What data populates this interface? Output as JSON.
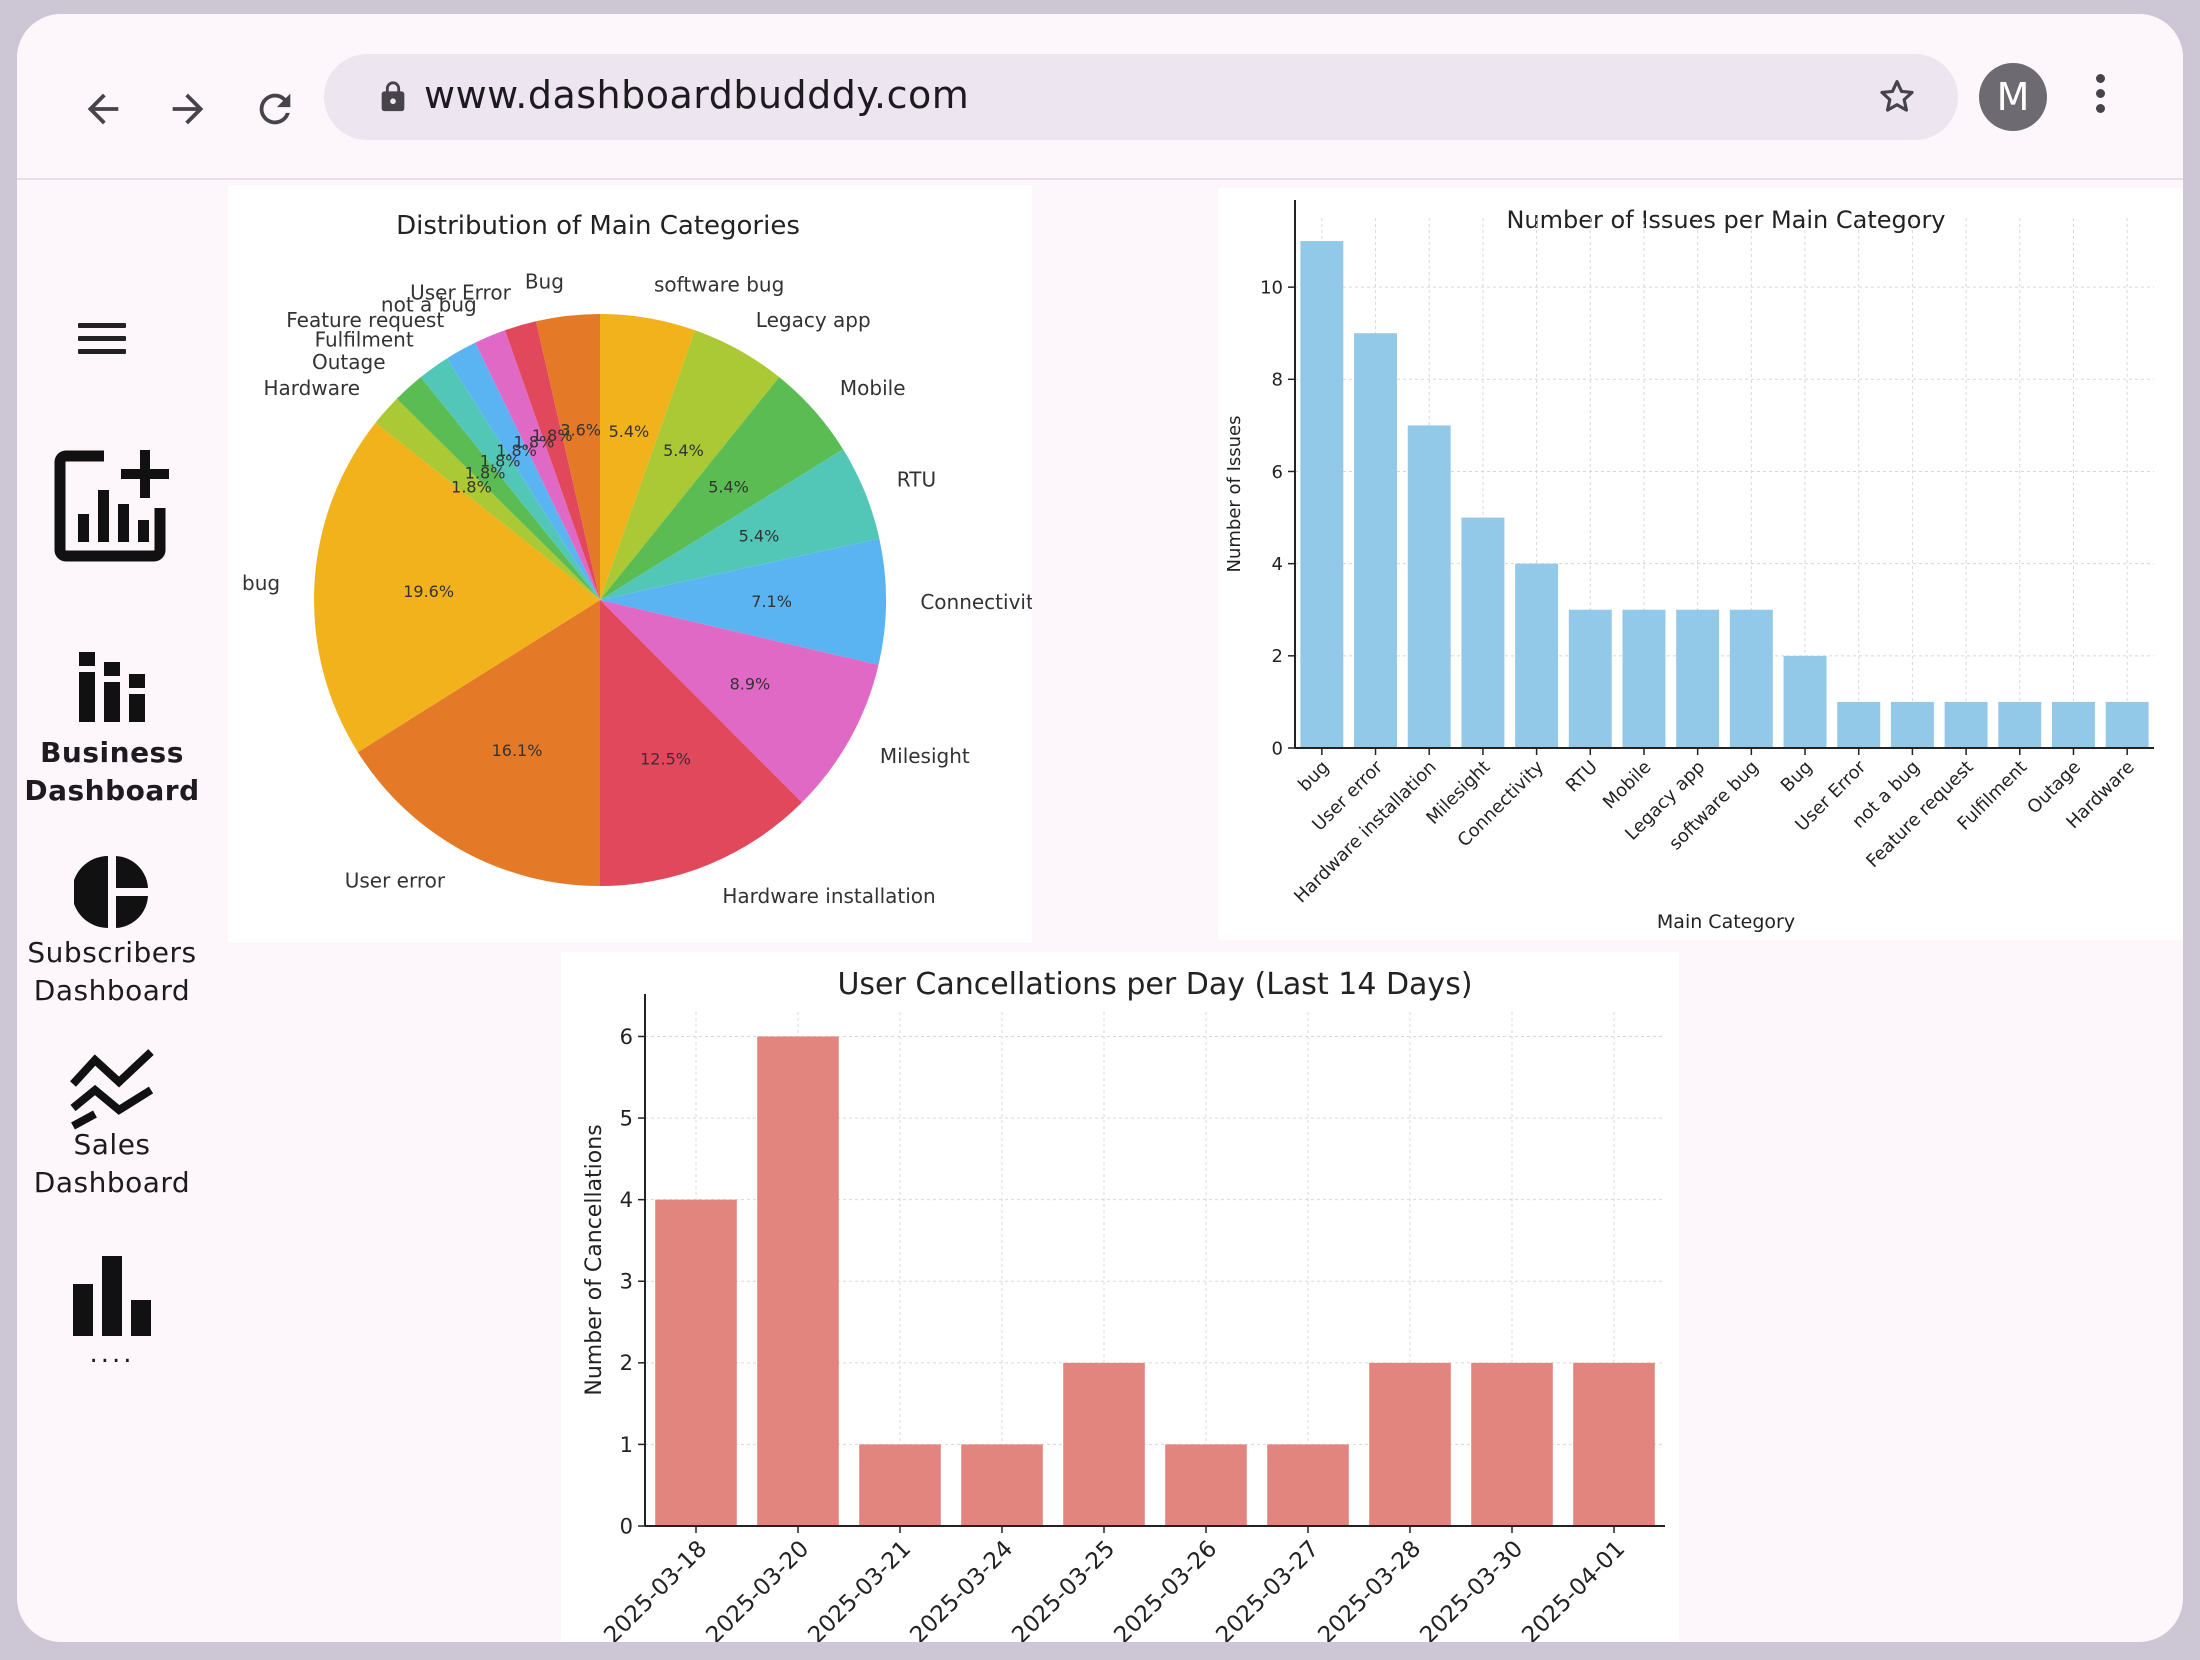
{
  "browser": {
    "url": "www.dashboardbudddy.com",
    "avatar_initial": "M",
    "icons": [
      "back-arrow-icon",
      "forward-arrow-icon",
      "reload-icon",
      "lock-icon",
      "star-icon",
      "more-vert-icon"
    ]
  },
  "sidebar": {
    "items": [
      {
        "label": "",
        "icon": "add-chart-icon"
      },
      {
        "label": "Business\nDashboard",
        "line1": "Business",
        "line2": "Dashboard",
        "icon": "business-bars-icon",
        "active": true
      },
      {
        "label": "Subscribers\nDashboard",
        "line1": "Subscribers",
        "line2": "Dashboard",
        "icon": "pie-chart-icon"
      },
      {
        "label": "Sales\nDashboard",
        "line1": "Sales",
        "line2": "Dashboard",
        "icon": "zigzag-trend-icon"
      },
      {
        "label": "....",
        "line1": "....",
        "icon": "bar-chart-icon"
      }
    ]
  },
  "colors": {
    "bar_blue": "#92c9e9",
    "bar_red": "#e1857e",
    "frame_bg": "#fdf7fb",
    "url_bg": "#ede6f0"
  },
  "chart_data": [
    {
      "type": "pie",
      "title": "Distribution of Main Categories",
      "slices": [
        {
          "label": "software bug",
          "pct": "5.4%",
          "value": 5.4,
          "color": "#f2b21c"
        },
        {
          "label": "Legacy app",
          "pct": "5.4%",
          "value": 5.4,
          "color": "#aac934"
        },
        {
          "label": "Mobile",
          "pct": "5.4%",
          "value": 5.4,
          "color": "#5abc52"
        },
        {
          "label": "RTU",
          "pct": "5.4%",
          "value": 5.4,
          "color": "#53c7b7"
        },
        {
          "label": "Connectivity",
          "pct": "7.1%",
          "value": 7.1,
          "color": "#5ab4f2"
        },
        {
          "label": "Milesight",
          "pct": "8.9%",
          "value": 8.9,
          "color": "#e069c6"
        },
        {
          "label": "Hardware installation",
          "pct": "12.5%",
          "value": 12.5,
          "color": "#e1485c"
        },
        {
          "label": "User error",
          "pct": "16.1%",
          "value": 16.1,
          "color": "#e47a28"
        },
        {
          "label": "bug",
          "pct": "19.6%",
          "value": 19.6,
          "color": "#f2b21c"
        },
        {
          "label": "Hardware",
          "pct": "1.8%",
          "value": 1.8,
          "color": "#aac934"
        },
        {
          "label": "Outage",
          "pct": "1.8%",
          "value": 1.8,
          "color": "#5abc52"
        },
        {
          "label": "Fulfilment",
          "pct": "1.8%",
          "value": 1.8,
          "color": "#53c7b7"
        },
        {
          "label": "Feature request",
          "pct": "1.8%",
          "value": 1.8,
          "color": "#5ab4f2"
        },
        {
          "label": "not a bug",
          "pct": "1.8%",
          "value": 1.8,
          "color": "#e069c6"
        },
        {
          "label": "User Error",
          "pct": "1.8%",
          "value": 1.8,
          "color": "#e1485c"
        },
        {
          "label": "Bug",
          "pct": "3.6%",
          "value": 3.6,
          "color": "#e47a28"
        }
      ]
    },
    {
      "type": "bar",
      "title": "Number of Issues per Main Category",
      "xlabel": "Main Category",
      "ylabel": "Number of Issues",
      "categories": [
        "bug",
        "User error",
        "Hardware installation",
        "Milesight",
        "Connectivity",
        "RTU",
        "Mobile",
        "Legacy app",
        "software bug",
        "Bug",
        "User Error",
        "not a bug",
        "Feature request",
        "Fulfilment",
        "Outage",
        "Hardware"
      ],
      "values": [
        11,
        9,
        7,
        5,
        4,
        3,
        3,
        3,
        3,
        2,
        1,
        1,
        1,
        1,
        1,
        1
      ],
      "yticks": [
        0,
        2,
        4,
        6,
        8,
        10
      ],
      "ylim": [
        0,
        11.5
      ],
      "grid": true
    },
    {
      "type": "bar",
      "title": "User Cancellations per Day (Last 14 Days)",
      "xlabel": "",
      "ylabel": "Number of Cancellations",
      "categories": [
        "2025-03-18",
        "2025-03-20",
        "2025-03-21",
        "2025-03-24",
        "2025-03-25",
        "2025-03-26",
        "2025-03-27",
        "2025-03-28",
        "2025-03-30",
        "2025-04-01"
      ],
      "values": [
        4,
        6,
        1,
        1,
        2,
        1,
        1,
        2,
        2,
        2
      ],
      "yticks": [
        0,
        1,
        2,
        3,
        4,
        5,
        6
      ],
      "ylim": [
        0,
        6.3
      ],
      "grid": true
    }
  ]
}
